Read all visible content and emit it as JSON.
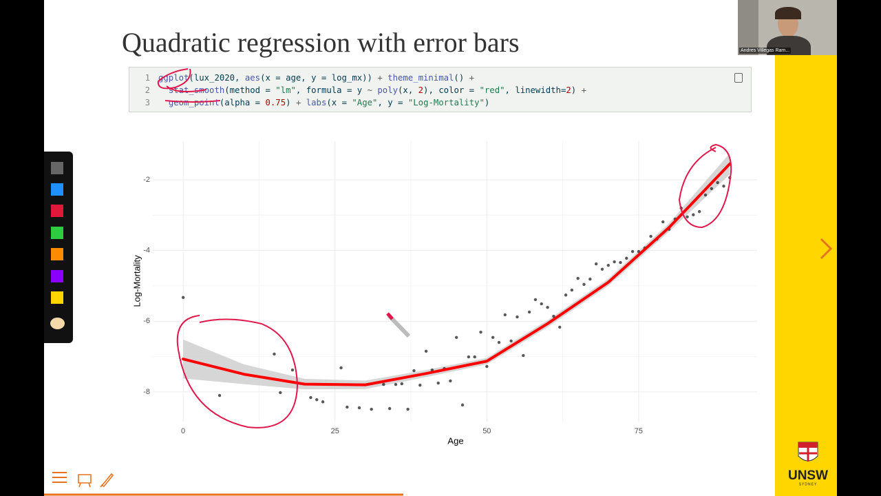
{
  "slide": {
    "title": "Quadratic regression with error bars"
  },
  "code": {
    "lines": [
      {
        "number": 1,
        "tokens": [
          {
            "text": "ggplot",
            "color": "#4758ab"
          },
          {
            "text": "(lux_2020, ",
            "color": "#003b4f"
          },
          {
            "text": "aes",
            "color": "#4758ab"
          },
          {
            "text": "(x = age, y = log_mx)) ",
            "color": "#003b4f"
          },
          {
            "text": "+",
            "color": "#5e5e5e"
          },
          {
            "text": " ",
            "color": "#003b4f"
          },
          {
            "text": "theme_minimal",
            "color": "#4758ab"
          },
          {
            "text": "() ",
            "color": "#003b4f"
          },
          {
            "text": "+",
            "color": "#5e5e5e"
          }
        ]
      },
      {
        "number": 2,
        "tokens": [
          {
            "text": "  ",
            "color": "#003b4f"
          },
          {
            "text": "stat_smooth",
            "color": "#4758ab"
          },
          {
            "text": "(method = ",
            "color": "#003b4f"
          },
          {
            "text": "\"lm\"",
            "color": "#20794d"
          },
          {
            "text": ", formula = y ",
            "color": "#003b4f"
          },
          {
            "text": "~",
            "color": "#5e5e5e"
          },
          {
            "text": " ",
            "color": "#003b4f"
          },
          {
            "text": "poly",
            "color": "#4758ab"
          },
          {
            "text": "(x, ",
            "color": "#003b4f"
          },
          {
            "text": "2",
            "color": "#ad0000"
          },
          {
            "text": "), color = ",
            "color": "#003b4f"
          },
          {
            "text": "\"red\"",
            "color": "#20794d"
          },
          {
            "text": ", linewidth=",
            "color": "#003b4f"
          },
          {
            "text": "2",
            "color": "#ad0000"
          },
          {
            "text": ") ",
            "color": "#003b4f"
          },
          {
            "text": "+",
            "color": "#5e5e5e"
          }
        ]
      },
      {
        "number": 3,
        "tokens": [
          {
            "text": "  ",
            "color": "#003b4f"
          },
          {
            "text": "geom_point",
            "color": "#4758ab"
          },
          {
            "text": "(alpha = ",
            "color": "#003b4f"
          },
          {
            "text": "0.75",
            "color": "#ad0000"
          },
          {
            "text": ") ",
            "color": "#003b4f"
          },
          {
            "text": "+",
            "color": "#5e5e5e"
          },
          {
            "text": " ",
            "color": "#003b4f"
          },
          {
            "text": "labs",
            "color": "#4758ab"
          },
          {
            "text": "(x = ",
            "color": "#003b4f"
          },
          {
            "text": "\"Age\"",
            "color": "#20794d"
          },
          {
            "text": ", y = ",
            "color": "#003b4f"
          },
          {
            "text": "\"Log-Mortality\"",
            "color": "#20794d"
          },
          {
            "text": ")",
            "color": "#003b4f"
          }
        ]
      }
    ]
  },
  "chart_data": {
    "type": "scatter",
    "x_label": "Age",
    "y_label": "Log-Mortality",
    "xlim": [
      -5,
      94.5
    ],
    "ylim": [
      -8.84,
      -0.91
    ],
    "xticks": [
      0,
      25,
      50,
      75
    ],
    "yticks": [
      -2,
      -4,
      -6,
      -8
    ],
    "grid": true,
    "points": {
      "color": "#222222",
      "x": [
        0,
        6,
        15,
        16,
        18,
        21,
        22,
        23,
        26,
        27,
        29,
        31,
        33,
        34,
        35,
        36,
        37,
        38,
        39,
        40,
        41,
        42,
        43,
        44,
        45,
        46,
        47,
        48,
        49,
        50,
        51,
        52,
        53,
        54,
        55,
        56,
        57,
        58,
        59,
        60,
        61,
        62,
        63,
        64,
        65,
        66,
        67,
        68,
        69,
        70,
        71,
        72,
        73,
        74,
        75,
        76,
        77,
        78,
        79,
        80,
        81,
        82,
        83,
        84,
        85,
        86,
        87,
        88,
        89,
        90
      ],
      "values": [
        -5.33,
        -8.1,
        -6.93,
        -8.02,
        -7.38,
        -8.16,
        -8.22,
        -8.28,
        -7.32,
        -8.43,
        -8.45,
        -8.49,
        -7.79,
        -8.47,
        -7.79,
        -7.77,
        -8.49,
        -7.4,
        -7.81,
        -6.85,
        -7.38,
        -7.75,
        -7.34,
        -7.69,
        -6.46,
        -8.37,
        -7.01,
        -7.01,
        -6.31,
        -7.28,
        -6.46,
        -6.6,
        -5.82,
        -6.56,
        -5.88,
        -6.97,
        -5.74,
        -5.39,
        -5.51,
        -5.61,
        -5.86,
        -6.17,
        -5.26,
        -5.12,
        -4.79,
        -4.96,
        -4.81,
        -4.38,
        -4.53,
        -4.42,
        -4.32,
        -4.34,
        -4.22,
        -4.03,
        -4.03,
        -3.93,
        -3.6,
        -3.68,
        -3.19,
        -3.4,
        -3.11,
        -2.8,
        -3.05,
        -2.99,
        -2.9,
        -2.43,
        -2.25,
        -2.08,
        -2.18,
        -1.94
      ]
    },
    "fit": {
      "color": "#ff0000",
      "band_color": "#c8c8c8",
      "x": [
        0,
        10,
        20,
        30,
        40,
        50,
        60,
        70,
        80,
        90
      ],
      "values": [
        -7.07,
        -7.5,
        -7.78,
        -7.8,
        -7.48,
        -7.13,
        -6.07,
        -4.9,
        -3.35,
        -1.55
      ],
      "lower": [
        -7.62,
        -7.78,
        -7.93,
        -7.92,
        -7.58,
        -7.22,
        -6.17,
        -5.0,
        -3.47,
        -1.85
      ],
      "upper": [
        -6.52,
        -7.22,
        -7.63,
        -7.68,
        -7.38,
        -7.04,
        -5.97,
        -4.8,
        -3.23,
        -1.25
      ]
    }
  },
  "video": {
    "participant": "Andres Villegas Ram..."
  },
  "logo": {
    "name": "UNSW",
    "place": "SYDNEY"
  }
}
